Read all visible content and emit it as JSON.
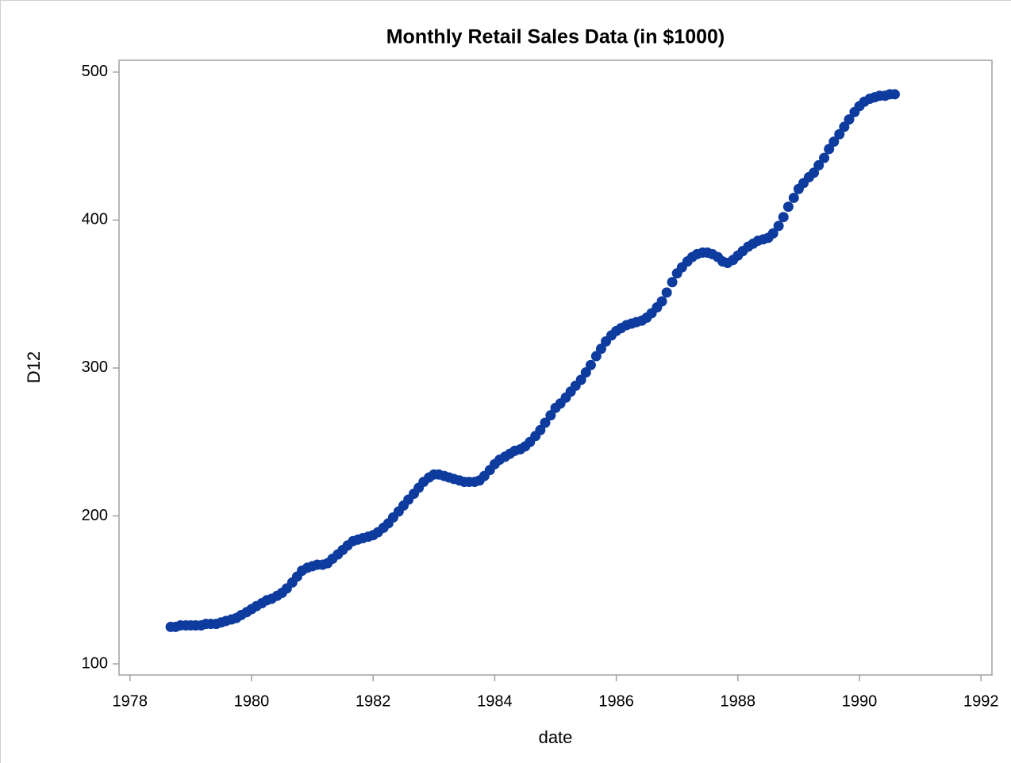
{
  "chart_data": {
    "type": "scatter",
    "title": "Monthly Retail Sales Data (in $1000)",
    "x_label": "date",
    "y_label": "D12",
    "xlim": [
      1977.82,
      1992.18
    ],
    "xticks": [
      1978,
      1980,
      1982,
      1984,
      1986,
      1988,
      1990,
      1992
    ],
    "ylim": [
      92.5,
      508
    ],
    "yticks": [
      100,
      200,
      300,
      400,
      500
    ],
    "color": "#0d3b9e",
    "x": [
      1978.67,
      1978.75,
      1978.83,
      1978.92,
      1979.0,
      1979.08,
      1979.17,
      1979.25,
      1979.33,
      1979.42,
      1979.5,
      1979.58,
      1979.67,
      1979.75,
      1979.83,
      1979.92,
      1980.0,
      1980.08,
      1980.17,
      1980.25,
      1980.33,
      1980.42,
      1980.5,
      1980.58,
      1980.67,
      1980.75,
      1980.83,
      1980.92,
      1981.0,
      1981.08,
      1981.17,
      1981.25,
      1981.33,
      1981.42,
      1981.5,
      1981.58,
      1981.67,
      1981.75,
      1981.83,
      1981.92,
      1982.0,
      1982.08,
      1982.17,
      1982.25,
      1982.33,
      1982.42,
      1982.5,
      1982.58,
      1982.67,
      1982.75,
      1982.83,
      1982.92,
      1983.0,
      1983.08,
      1983.17,
      1983.25,
      1983.33,
      1983.42,
      1983.5,
      1983.58,
      1983.67,
      1983.75,
      1983.83,
      1983.92,
      1984.0,
      1984.08,
      1984.17,
      1984.25,
      1984.33,
      1984.42,
      1984.5,
      1984.58,
      1984.67,
      1984.75,
      1984.83,
      1984.92,
      1985.0,
      1985.08,
      1985.17,
      1985.25,
      1985.33,
      1985.42,
      1985.5,
      1985.58,
      1985.67,
      1985.75,
      1985.83,
      1985.92,
      1986.0,
      1986.08,
      1986.17,
      1986.25,
      1986.33,
      1986.42,
      1986.5,
      1986.58,
      1986.67,
      1986.75,
      1986.83,
      1986.92,
      1987.0,
      1987.08,
      1987.17,
      1987.25,
      1987.33,
      1987.42,
      1987.5,
      1987.58,
      1987.67,
      1987.75,
      1987.83,
      1987.92,
      1988.0,
      1988.08,
      1988.17,
      1988.25,
      1988.33,
      1988.42,
      1988.5,
      1988.58,
      1988.67,
      1988.75,
      1988.83,
      1988.92,
      1989.0,
      1989.08,
      1989.17,
      1989.25,
      1989.33,
      1989.42,
      1989.5,
      1989.58,
      1989.67,
      1989.75,
      1989.83,
      1989.92,
      1990.0,
      1990.08,
      1990.17,
      1990.25,
      1990.33,
      1990.42,
      1990.5,
      1990.58
    ],
    "values": [
      125,
      125,
      126,
      126,
      126,
      126,
      126,
      127,
      127,
      127,
      128,
      129,
      130,
      131,
      133,
      135,
      137,
      139,
      141,
      143,
      144,
      146,
      148,
      151,
      155,
      159,
      163,
      165,
      166,
      167,
      167,
      168,
      171,
      174,
      177,
      180,
      183,
      184,
      185,
      186,
      187,
      189,
      192,
      195,
      199,
      203,
      207,
      211,
      215,
      219,
      223,
      226,
      228,
      228,
      227,
      226,
      225,
      224,
      223,
      223,
      223,
      224,
      227,
      231,
      235,
      238,
      240,
      242,
      244,
      245,
      247,
      250,
      254,
      258,
      263,
      268,
      273,
      276,
      280,
      284,
      288,
      292,
      297,
      302,
      308,
      313,
      318,
      322,
      325,
      327,
      329,
      330,
      331,
      332,
      334,
      337,
      341,
      345,
      351,
      358,
      364,
      368,
      372,
      375,
      377,
      378,
      378,
      377,
      375,
      372,
      371,
      373,
      376,
      379,
      382,
      384,
      386,
      387,
      388,
      391,
      396,
      402,
      409,
      415,
      421,
      425,
      429,
      432,
      437,
      442,
      448,
      453,
      458,
      463,
      468,
      473,
      477,
      480,
      482,
      483,
      484,
      484,
      485,
      485
    ]
  }
}
